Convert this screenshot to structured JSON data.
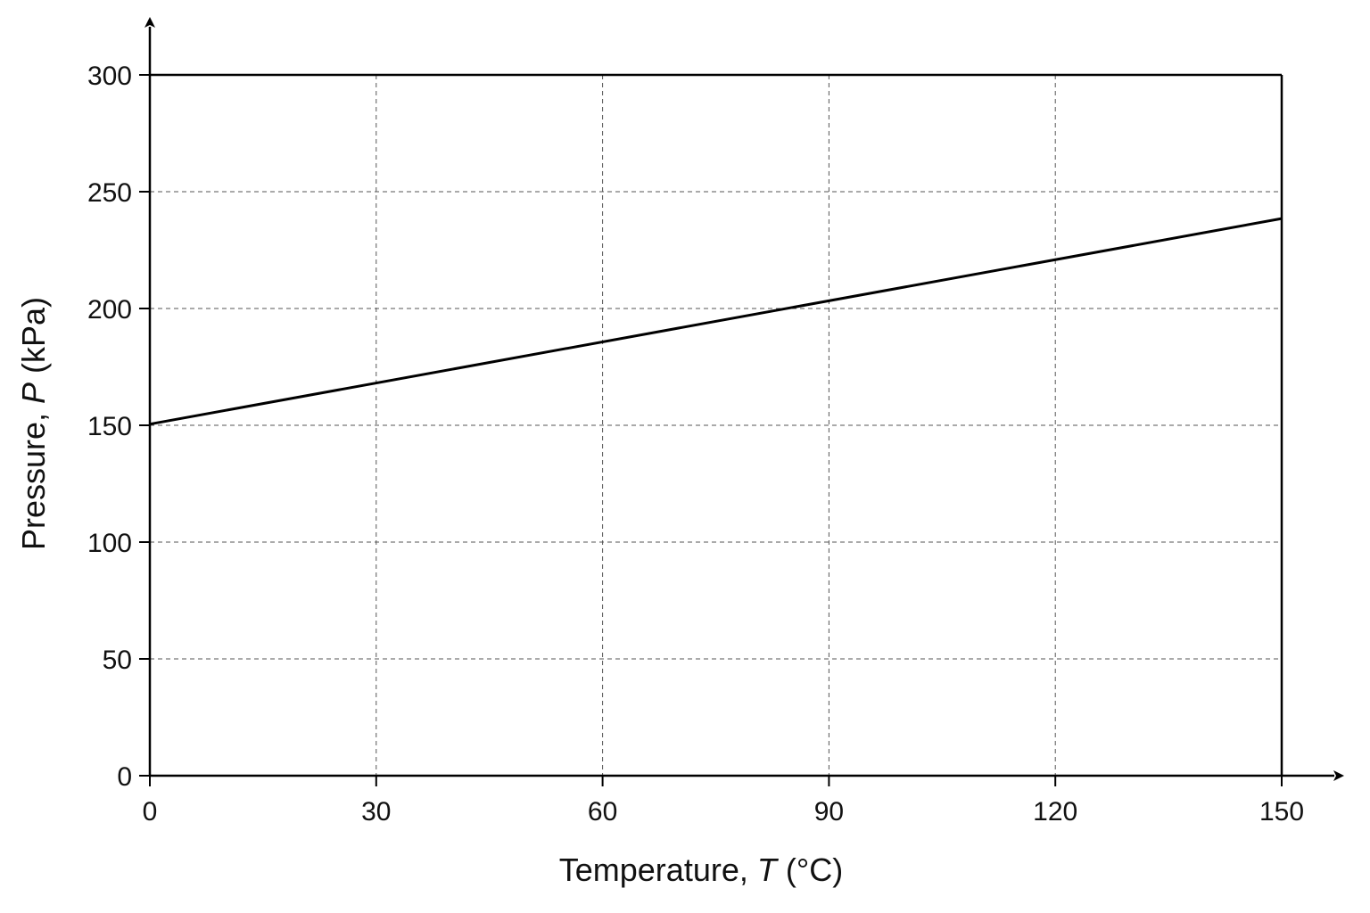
{
  "chart_data": {
    "type": "line",
    "xlabel": {
      "prefix": "Temperature, ",
      "symbol": "T",
      "unit": " (°C)"
    },
    "ylabel": {
      "prefix": "Pressure, ",
      "symbol": "P",
      "unit": " (kPa)"
    },
    "xlim": [
      0,
      150
    ],
    "ylim": [
      0,
      300
    ],
    "xticks": [
      0,
      30,
      60,
      90,
      120,
      150
    ],
    "yticks": [
      0,
      50,
      100,
      150,
      200,
      250,
      300
    ],
    "grid": true,
    "series": [
      {
        "x": [
          0,
          150
        ],
        "y": [
          150.5,
          238.5
        ]
      }
    ]
  }
}
